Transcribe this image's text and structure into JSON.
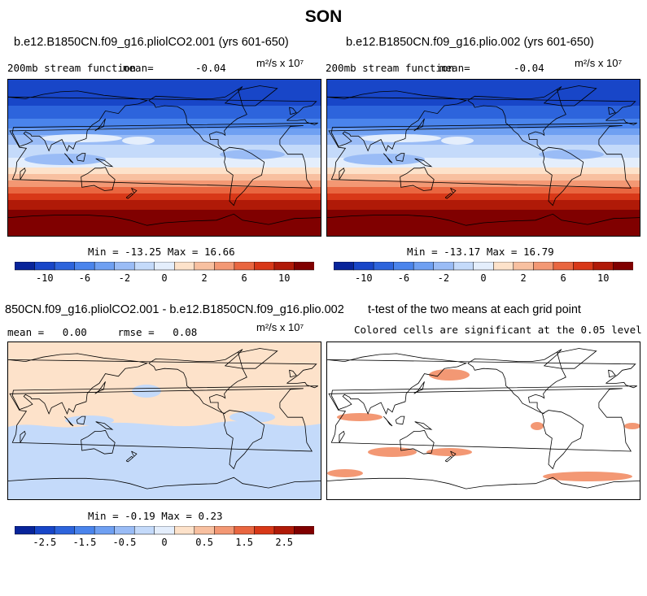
{
  "title": "SON",
  "panels": [
    {
      "title": "b.e12.B1850CN.f09_g16.pliolCO2.001 (yrs 601-650)",
      "left_label": "200mb stream function",
      "center_label": "mean=",
      "center_value": "-0.04",
      "units": "m²/s x 10⁷",
      "stats": "Min = -13.25 Max =  16.66"
    },
    {
      "title": "b.e12.B1850CN.f09_g16.plio.002 (yrs 601-650)",
      "left_label": "200mb stream function",
      "center_label": "mean=",
      "center_value": "-0.04",
      "units": "m²/s x 10⁷",
      "stats": "Min = -13.17 Max =  16.79"
    },
    {
      "title": "850CN.f09_g16.pliolCO2.001 - b.e12.B1850CN.f09_g16.plio.002",
      "left_label": "mean =   0.00     rmse =   0.08",
      "units": "m²/s x 10⁷",
      "stats": "Min = -0.19 Max =   0.23"
    },
    {
      "title": "t-test of the two means at each grid point",
      "left_label": "Colored cells are significant at the 0.05 level"
    }
  ],
  "colorbars": {
    "abs": {
      "colors": [
        "#08249a",
        "#1846c8",
        "#2d64dc",
        "#4a84ec",
        "#6fa0f2",
        "#9abcf6",
        "#c4dafa",
        "#e4eefc",
        "#fde2ca",
        "#f8c0a0",
        "#f39874",
        "#e96640",
        "#d83818",
        "#b01a08",
        "#800000"
      ],
      "labels": [
        "-10",
        "-6",
        "-2",
        "0",
        "2",
        "6",
        "10"
      ]
    },
    "diff": {
      "colors": [
        "#08249a",
        "#1846c8",
        "#2d64dc",
        "#4a84ec",
        "#6fa0f2",
        "#9abcf6",
        "#c4dafa",
        "#e4eefc",
        "#fde2ca",
        "#f8c0a0",
        "#f39874",
        "#e96640",
        "#d83818",
        "#b01a08",
        "#800000"
      ],
      "labels": [
        "-2.5",
        "-1.5",
        "-0.5",
        "0",
        "0.5",
        "1.5",
        "2.5"
      ]
    }
  },
  "chart_data": [
    {
      "type": "heatmap",
      "title": "b.e12.B1850CN.f09_g16.pliolCO2.001 (yrs 601-650)",
      "variable": "200mb stream function",
      "units": "m^2/s x 10^7",
      "mean": -0.04,
      "min": -13.25,
      "max": 16.66,
      "zonal_profile_lat": [
        90,
        70,
        50,
        30,
        15,
        0,
        -15,
        -30,
        -45,
        -60,
        -75,
        -90
      ],
      "zonal_profile_value": [
        -12,
        -11,
        -9,
        -5,
        -2,
        0,
        3,
        7,
        11,
        14,
        16,
        16.5
      ]
    },
    {
      "type": "heatmap",
      "title": "b.e12.B1850CN.f09_g16.plio.002 (yrs 601-650)",
      "variable": "200mb stream function",
      "units": "m^2/s x 10^7",
      "mean": -0.04,
      "min": -13.17,
      "max": 16.79,
      "zonal_profile_lat": [
        90,
        70,
        50,
        30,
        15,
        0,
        -15,
        -30,
        -45,
        -60,
        -75,
        -90
      ],
      "zonal_profile_value": [
        -12,
        -11,
        -9,
        -5,
        -2,
        0,
        3,
        7,
        11,
        14,
        16,
        16.6
      ]
    },
    {
      "type": "heatmap",
      "title": "850CN.f09_g16.pliolCO2.001 - b.e12.B1850CN.f09_g16.plio.002",
      "units": "m^2/s x 10^7",
      "mean": 0.0,
      "rmse": 0.08,
      "min": -0.19,
      "max": 0.23
    },
    {
      "type": "heatmap",
      "title": "t-test of the two means at each grid point",
      "significance_level": 0.05
    }
  ]
}
